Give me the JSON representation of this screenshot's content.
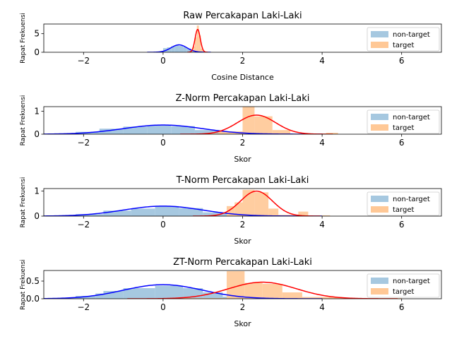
{
  "legend": {
    "nontarget_label": "non-target",
    "target_label": "target"
  },
  "colors": {
    "nontarget_hist": "#a6c8e0",
    "target_hist": "#ffc896",
    "nontarget_curve": "#0000ff",
    "target_curve": "#ff0000",
    "axis": "#000000"
  },
  "chart_data": [
    {
      "type": "histogram+density",
      "title": "Raw Percakapan Laki-Laki",
      "xlabel": "Cosine Distance",
      "ylabel": "Rapat Frekuensi",
      "xlim": [
        -3,
        7
      ],
      "ylim": [
        0,
        7.6
      ],
      "xticks": [
        -2,
        0,
        2,
        4,
        6
      ],
      "yticks": [
        0,
        5
      ],
      "legend_position": "top-right",
      "nontarget_curve": {
        "mean": 0.4,
        "std": 0.2
      },
      "target_curve": {
        "mean": 0.87,
        "std": 0.065
      },
      "nontarget_bins": [
        [
          0.0,
          0.1,
          1.1
        ],
        [
          0.1,
          0.2,
          1.3
        ],
        [
          0.2,
          0.3,
          1.6
        ],
        [
          0.3,
          0.4,
          1.8
        ],
        [
          0.4,
          0.5,
          1.7
        ],
        [
          0.5,
          0.6,
          1.4
        ],
        [
          0.6,
          0.7,
          1.0
        ],
        [
          0.7,
          0.8,
          0.6
        ],
        [
          0.8,
          0.9,
          0.2
        ]
      ],
      "target_bins": [
        [
          0.75,
          0.8,
          1.5
        ],
        [
          0.8,
          0.85,
          4.0
        ],
        [
          0.85,
          0.9,
          7.2
        ],
        [
          0.9,
          0.95,
          4.5
        ],
        [
          0.95,
          1.0,
          1.0
        ]
      ]
    },
    {
      "type": "histogram+density",
      "title": "Z-Norm Percakapan Laki-Laki",
      "xlabel": "Skor",
      "ylabel": "Rapat Frekuensi",
      "xlim": [
        -3,
        7
      ],
      "ylim": [
        0,
        1.2
      ],
      "xticks": [
        -2,
        0,
        2,
        4,
        6
      ],
      "yticks": [
        0,
        1
      ],
      "legend_position": "top-right",
      "nontarget_curve": {
        "mean": 0.0,
        "std": 1.0
      },
      "target_curve": {
        "mean": 2.35,
        "std": 0.48
      },
      "nontarget_bins": [
        [
          -2.8,
          -2.2,
          0.02
        ],
        [
          -2.2,
          -1.6,
          0.1
        ],
        [
          -1.6,
          -1.0,
          0.24
        ],
        [
          -1.0,
          -0.4,
          0.33
        ],
        [
          -0.4,
          0.2,
          0.38
        ],
        [
          0.2,
          0.8,
          0.35
        ],
        [
          0.8,
          1.4,
          0.18
        ],
        [
          1.4,
          2.0,
          0.05
        ]
      ],
      "target_bins": [
        [
          1.0,
          1.4,
          0.04
        ],
        [
          1.4,
          2.0,
          0.12
        ],
        [
          2.0,
          2.3,
          1.2
        ],
        [
          2.3,
          2.75,
          0.78
        ],
        [
          2.75,
          3.2,
          0.18
        ],
        [
          3.2,
          4.1,
          0.03
        ],
        [
          4.1,
          4.4,
          0.06
        ]
      ]
    },
    {
      "type": "histogram+density",
      "title": "T-Norm Percakapan Laki-Laki",
      "xlabel": "Skor",
      "ylabel": "Rapat Frekuensi",
      "xlim": [
        -3,
        7
      ],
      "ylim": [
        0,
        1.1
      ],
      "xticks": [
        -2,
        0,
        2,
        4,
        6
      ],
      "yticks": [
        0,
        1
      ],
      "legend_position": "top-right",
      "nontarget_curve": {
        "mean": 0.0,
        "std": 1.0
      },
      "target_curve": {
        "mean": 2.35,
        "std": 0.4
      },
      "nontarget_bins": [
        [
          -2.8,
          -2.2,
          0.02
        ],
        [
          -2.2,
          -1.5,
          0.08
        ],
        [
          -1.5,
          -0.8,
          0.22
        ],
        [
          -0.8,
          -0.2,
          0.3
        ],
        [
          -0.2,
          0.4,
          0.4
        ],
        [
          0.4,
          1.0,
          0.32
        ],
        [
          1.0,
          1.6,
          0.15
        ],
        [
          1.6,
          2.0,
          0.05
        ]
      ],
      "target_bins": [
        [
          1.6,
          1.8,
          0.4
        ],
        [
          1.8,
          2.0,
          0.55
        ],
        [
          2.0,
          2.3,
          1.05
        ],
        [
          2.3,
          2.65,
          0.95
        ],
        [
          2.65,
          2.9,
          0.3
        ],
        [
          2.9,
          3.4,
          0.05
        ],
        [
          3.4,
          3.65,
          0.18
        ],
        [
          3.65,
          4.2,
          0.03
        ]
      ]
    },
    {
      "type": "histogram+density",
      "title": "ZT-Norm Percakapan Laki-Laki",
      "xlabel": "Skor",
      "ylabel": "Rapat Frekuensi",
      "xlim": [
        -3,
        7
      ],
      "ylim": [
        0,
        0.8
      ],
      "xticks": [
        -2,
        0,
        2,
        4,
        6
      ],
      "yticks": [
        0,
        0.5
      ],
      "ytick_labels": [
        "0.0",
        "0.5"
      ],
      "legend_position": "top-right",
      "nontarget_curve": {
        "mean": 0.0,
        "std": 1.0
      },
      "target_curve": {
        "mean": 2.5,
        "std": 0.85
      },
      "nontarget_bins": [
        [
          -2.8,
          -2.2,
          0.02
        ],
        [
          -2.2,
          -1.7,
          0.08
        ],
        [
          -1.7,
          -1.5,
          0.15
        ],
        [
          -1.5,
          -1.0,
          0.22
        ],
        [
          -1.0,
          -0.2,
          0.3
        ],
        [
          -0.2,
          0.5,
          0.37
        ],
        [
          0.5,
          1.0,
          0.3
        ],
        [
          1.0,
          1.5,
          0.18
        ],
        [
          1.5,
          2.0,
          0.06
        ]
      ],
      "target_bins": [
        [
          0.5,
          1.6,
          0.02
        ],
        [
          1.6,
          2.05,
          0.78
        ],
        [
          2.05,
          2.5,
          0.45
        ],
        [
          2.5,
          3.0,
          0.42
        ],
        [
          3.0,
          3.5,
          0.18
        ],
        [
          3.5,
          4.5,
          0.05
        ],
        [
          4.5,
          6.0,
          0.02
        ]
      ]
    }
  ]
}
